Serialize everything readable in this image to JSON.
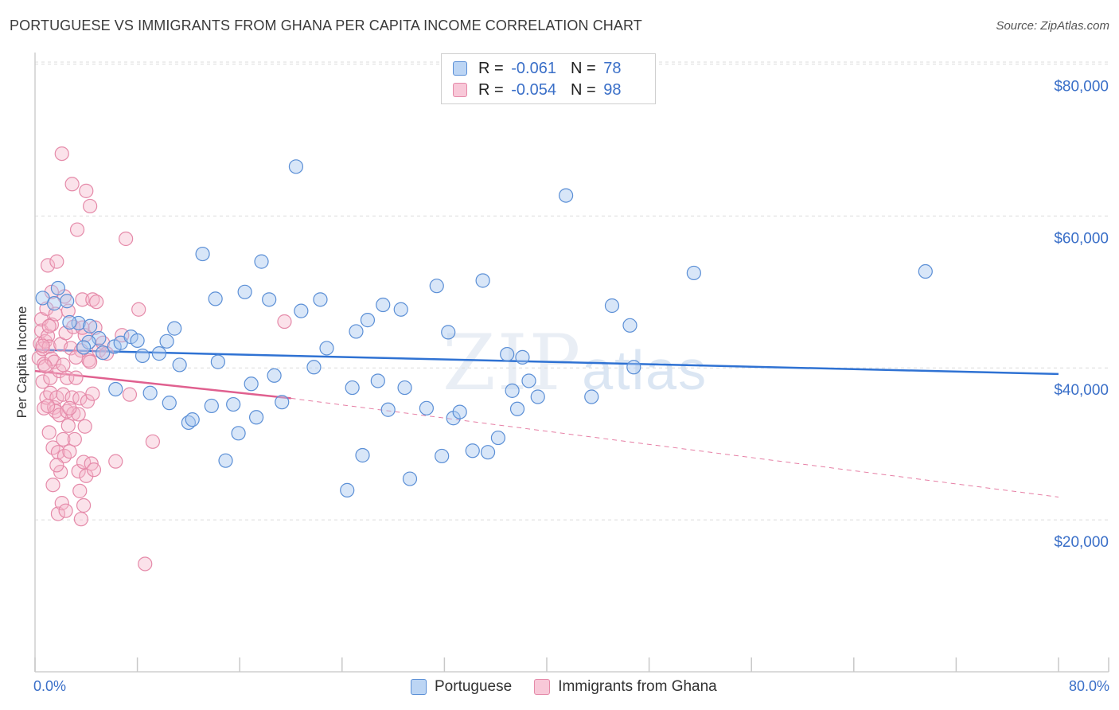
{
  "title": "PORTUGUESE VS IMMIGRANTS FROM GHANA PER CAPITA INCOME CORRELATION CHART",
  "source": "Source: ZipAtlas.com",
  "watermark": {
    "zip": "ZIP",
    "atlas": "atlas"
  },
  "colors": {
    "blue": "#3a6fc8",
    "blue_fill": "#a9c8ef",
    "blue_line": "#2f72d3",
    "pink": "#e8789f",
    "pink_fill": "#f5b6cb",
    "pink_line": "#e0608f",
    "grid": "#dcdcdc"
  },
  "legend": {
    "rows": [
      {
        "r_label": "R =",
        "r_value": "-0.061",
        "n_label": "N =",
        "n_value": "78"
      },
      {
        "r_label": "R =",
        "r_value": "-0.054",
        "n_label": "N =",
        "n_value": "98"
      }
    ]
  },
  "bottom_legend": {
    "portuguese": "Portuguese",
    "ghana": "Immigrants from Ghana"
  },
  "chart_data": {
    "type": "scatter",
    "title": "PORTUGUESE VS IMMIGRANTS FROM GHANA PER CAPITA INCOME CORRELATION CHART",
    "ylabel": "Per Capita Income",
    "xlabel": "",
    "x_tick_labels": [
      "0.0%",
      "80.0%"
    ],
    "y_tick_labels": [
      "$80,000",
      "$60,000",
      "$40,000",
      "$20,000"
    ],
    "y_ticks": [
      80000,
      60000,
      40000,
      20000
    ],
    "xlim": [
      0,
      80
    ],
    "ylim": [
      0,
      82000
    ],
    "grid": true,
    "legend_position": "top-center",
    "series": [
      {
        "name": "Portuguese",
        "r": -0.061,
        "n": 78,
        "trend": {
          "x": [
            0,
            80
          ],
          "y": [
            42400,
            39200
          ]
        },
        "points": [
          [
            0.6,
            49200
          ],
          [
            1.8,
            50500
          ],
          [
            2.5,
            48800
          ],
          [
            3.4,
            45900
          ],
          [
            4.3,
            45500
          ],
          [
            5.0,
            43900
          ],
          [
            5.3,
            42000
          ],
          [
            6.2,
            42800
          ],
          [
            6.3,
            37200
          ],
          [
            6.7,
            43300
          ],
          [
            7.5,
            44100
          ],
          [
            8.0,
            43600
          ],
          [
            8.4,
            41600
          ],
          [
            9.0,
            36700
          ],
          [
            9.7,
            41900
          ],
          [
            10.3,
            43500
          ],
          [
            10.9,
            45200
          ],
          [
            11.3,
            40400
          ],
          [
            12.0,
            32800
          ],
          [
            12.3,
            33200
          ],
          [
            13.1,
            55000
          ],
          [
            13.8,
            35000
          ],
          [
            14.1,
            49100
          ],
          [
            14.3,
            40800
          ],
          [
            14.9,
            27800
          ],
          [
            15.5,
            35200
          ],
          [
            15.9,
            31400
          ],
          [
            16.4,
            50000
          ],
          [
            16.9,
            37900
          ],
          [
            17.3,
            33500
          ],
          [
            17.7,
            54000
          ],
          [
            18.3,
            49000
          ],
          [
            18.7,
            39000
          ],
          [
            19.3,
            35500
          ],
          [
            20.4,
            66500
          ],
          [
            20.8,
            47500
          ],
          [
            21.8,
            40100
          ],
          [
            22.3,
            49000
          ],
          [
            22.8,
            42600
          ],
          [
            24.4,
            23900
          ],
          [
            24.8,
            37400
          ],
          [
            25.1,
            44800
          ],
          [
            25.6,
            28500
          ],
          [
            26.0,
            46300
          ],
          [
            26.8,
            38300
          ],
          [
            27.2,
            48300
          ],
          [
            27.6,
            34500
          ],
          [
            28.6,
            47700
          ],
          [
            28.9,
            37400
          ],
          [
            29.3,
            25400
          ],
          [
            30.6,
            34700
          ],
          [
            31.4,
            50800
          ],
          [
            31.8,
            28400
          ],
          [
            32.3,
            44700
          ],
          [
            32.7,
            33400
          ],
          [
            33.2,
            34200
          ],
          [
            34.2,
            29100
          ],
          [
            35.0,
            51500
          ],
          [
            35.4,
            28900
          ],
          [
            36.2,
            30800
          ],
          [
            36.9,
            41800
          ],
          [
            37.3,
            37000
          ],
          [
            37.7,
            34600
          ],
          [
            38.1,
            41400
          ],
          [
            38.6,
            38300
          ],
          [
            39.3,
            36200
          ],
          [
            41.5,
            62700
          ],
          [
            43.5,
            36200
          ],
          [
            45.1,
            48200
          ],
          [
            46.5,
            45600
          ],
          [
            46.8,
            40100
          ],
          [
            51.5,
            52500
          ],
          [
            69.6,
            52700
          ],
          [
            2.7,
            46000
          ],
          [
            4.2,
            43400
          ],
          [
            1.5,
            48500
          ],
          [
            3.8,
            42700
          ],
          [
            10.5,
            35400
          ]
        ]
      },
      {
        "name": "Immigrants from Ghana",
        "r": -0.054,
        "n": 98,
        "trend": {
          "x": [
            0,
            20,
            80
          ],
          "y": [
            39600,
            36000,
            23000
          ]
        },
        "points": [
          [
            0.3,
            41300
          ],
          [
            0.4,
            43200
          ],
          [
            0.5,
            44900
          ],
          [
            0.5,
            46400
          ],
          [
            0.6,
            38200
          ],
          [
            0.6,
            42500
          ],
          [
            0.7,
            34700
          ],
          [
            0.7,
            40500
          ],
          [
            0.8,
            43500
          ],
          [
            0.9,
            36100
          ],
          [
            0.9,
            47800
          ],
          [
            1.0,
            44200
          ],
          [
            1.0,
            53500
          ],
          [
            1.1,
            31500
          ],
          [
            1.1,
            42800
          ],
          [
            1.2,
            36700
          ],
          [
            1.2,
            38700
          ],
          [
            1.3,
            41200
          ],
          [
            1.3,
            45700
          ],
          [
            1.4,
            24600
          ],
          [
            1.4,
            29500
          ],
          [
            1.5,
            34800
          ],
          [
            1.5,
            40800
          ],
          [
            1.6,
            34300
          ],
          [
            1.6,
            47100
          ],
          [
            1.7,
            36100
          ],
          [
            1.7,
            54000
          ],
          [
            1.8,
            20800
          ],
          [
            1.8,
            28900
          ],
          [
            1.9,
            33800
          ],
          [
            1.9,
            39600
          ],
          [
            2.0,
            26300
          ],
          [
            2.0,
            43100
          ],
          [
            2.1,
            22200
          ],
          [
            2.1,
            68200
          ],
          [
            2.2,
            30600
          ],
          [
            2.2,
            36500
          ],
          [
            2.3,
            28400
          ],
          [
            2.3,
            49400
          ],
          [
            2.4,
            21200
          ],
          [
            2.4,
            44600
          ],
          [
            2.5,
            34300
          ],
          [
            2.5,
            38700
          ],
          [
            2.6,
            32400
          ],
          [
            2.6,
            47500
          ],
          [
            2.7,
            29000
          ],
          [
            2.8,
            42600
          ],
          [
            2.9,
            36100
          ],
          [
            2.9,
            64200
          ],
          [
            3.0,
            34000
          ],
          [
            3.0,
            45400
          ],
          [
            3.1,
            30600
          ],
          [
            3.2,
            38700
          ],
          [
            3.3,
            58200
          ],
          [
            3.4,
            26400
          ],
          [
            3.4,
            33900
          ],
          [
            3.5,
            23800
          ],
          [
            3.5,
            36000
          ],
          [
            3.6,
            20100
          ],
          [
            3.6,
            42300
          ],
          [
            3.7,
            49000
          ],
          [
            3.8,
            21900
          ],
          [
            3.8,
            27600
          ],
          [
            3.9,
            32300
          ],
          [
            3.9,
            44300
          ],
          [
            4.0,
            25800
          ],
          [
            4.0,
            63300
          ],
          [
            4.1,
            35600
          ],
          [
            4.2,
            41000
          ],
          [
            4.3,
            61300
          ],
          [
            4.4,
            27400
          ],
          [
            4.5,
            36600
          ],
          [
            4.5,
            49000
          ],
          [
            4.6,
            26600
          ],
          [
            4.7,
            45300
          ],
          [
            4.8,
            48700
          ],
          [
            5.0,
            42300
          ],
          [
            5.3,
            43300
          ],
          [
            5.6,
            41900
          ],
          [
            6.3,
            27700
          ],
          [
            6.8,
            44300
          ],
          [
            7.1,
            57000
          ],
          [
            7.4,
            36500
          ],
          [
            8.1,
            47700
          ],
          [
            8.6,
            14200
          ],
          [
            9.2,
            30300
          ],
          [
            19.5,
            46100
          ],
          [
            0.8,
            40200
          ],
          [
            1.0,
            35000
          ],
          [
            1.3,
            50000
          ],
          [
            1.7,
            27200
          ],
          [
            2.2,
            40400
          ],
          [
            2.7,
            34700
          ],
          [
            3.2,
            41400
          ],
          [
            3.7,
            45300
          ],
          [
            4.3,
            40800
          ],
          [
            0.6,
            42900
          ],
          [
            1.1,
            45500
          ]
        ]
      }
    ]
  }
}
